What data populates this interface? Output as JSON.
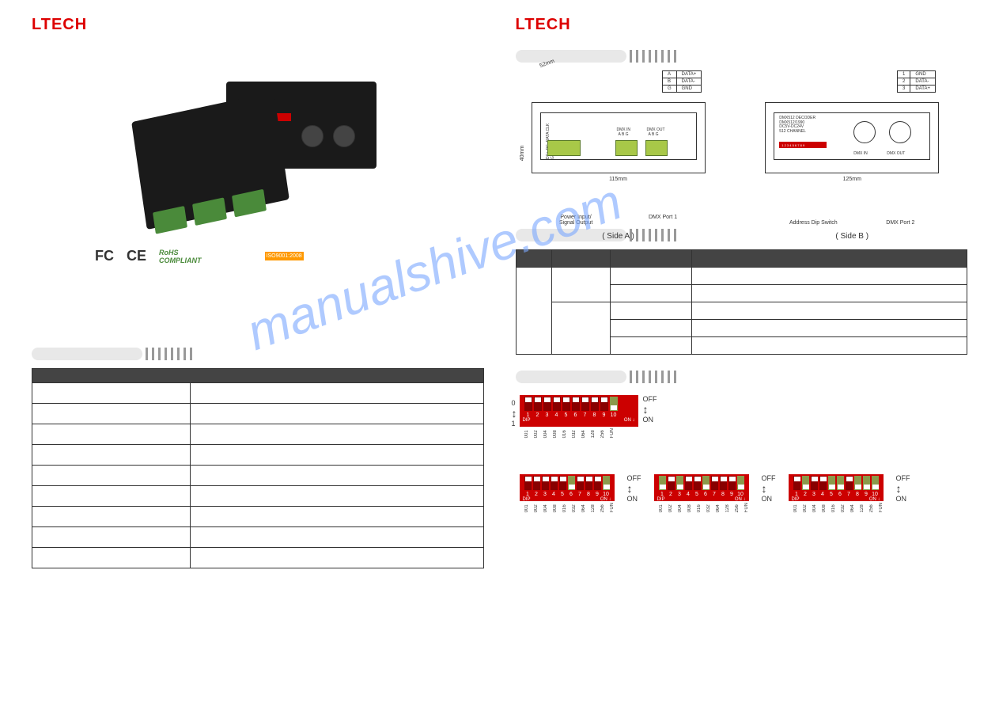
{
  "brand": "LTECH",
  "watermark": "manualshive.com",
  "certs": {
    "fc": "FC",
    "ce": "CE",
    "rohs_top": "RoHS",
    "rohs_bot": "COMPLIANT",
    "iso": "ISO9001:2008"
  },
  "left_spec": {
    "rows": [
      [
        "",
        ""
      ],
      [
        "",
        ""
      ],
      [
        "",
        ""
      ],
      [
        "",
        ""
      ],
      [
        "",
        ""
      ],
      [
        "",
        ""
      ],
      [
        "",
        ""
      ],
      [
        "",
        ""
      ],
      [
        "",
        ""
      ]
    ]
  },
  "diag_a": {
    "dim_v": "40mm",
    "dim_h": "115mm",
    "dim_top": "52mm",
    "label1": "Power Input/",
    "label1b": "Signal Output",
    "label2": "DMX Port 1",
    "side": "( Side A )",
    "pins": [
      [
        "A",
        "DATA+"
      ],
      [
        "B",
        "DATA-"
      ],
      [
        "G",
        "GND"
      ]
    ],
    "term_labels": [
      "DC+",
      "DC-",
      "DATA",
      "CLK",
      "GND"
    ],
    "port_in": "DMX IN",
    "port_out": "DMX OUT",
    "sub_labels": "A B G"
  },
  "diag_b": {
    "dim_h": "125mm",
    "label1": "Address Dip Switch",
    "label2": "DMX Port 2",
    "side": "( Side B )",
    "pins": [
      [
        "1",
        "GND"
      ],
      [
        "2",
        "DATA-"
      ],
      [
        "3",
        "DATA+"
      ]
    ],
    "dev_text1": "DMX512 DECODER",
    "dev_text2": "DMX512/1990",
    "dev_text3": "DC5V-DC24V",
    "dev_text4": "512 CHANNEL",
    "strip": "1 2 3 4 5 6 7 8 9",
    "port_in": "DMX IN",
    "port_out": "DMX OUT"
  },
  "port_table": {
    "rows": [
      [
        "",
        "",
        "",
        "",
        ""
      ],
      [
        "",
        "",
        "",
        "",
        ""
      ]
    ]
  },
  "dip_main": {
    "left_0": "0",
    "left_1": "1",
    "right_off": "OFF",
    "right_on": "ON",
    "nums": [
      "1",
      "2",
      "3",
      "4",
      "5",
      "6",
      "7",
      "8",
      "9",
      "10"
    ],
    "vals": [
      "001",
      "002",
      "004",
      "008",
      "016",
      "032",
      "064",
      "128",
      "256",
      "FUN"
    ],
    "label_dip": "DIP",
    "label_on": "ON ↓",
    "states": [
      false,
      false,
      false,
      false,
      false,
      false,
      false,
      false,
      false,
      true
    ]
  },
  "dip_ex1": {
    "nums": [
      "1",
      "2",
      "3",
      "4",
      "5",
      "6",
      "7",
      "8",
      "9",
      "10"
    ],
    "vals": [
      "001",
      "002",
      "004",
      "008",
      "016",
      "032",
      "064",
      "128",
      "256",
      "FUN"
    ],
    "states": [
      false,
      false,
      false,
      false,
      false,
      true,
      false,
      false,
      false,
      true
    ],
    "right_off": "OFF",
    "right_on": "ON",
    "label_dip": "DIP",
    "label_on": "ON ↓"
  },
  "dip_ex2": {
    "nums": [
      "1",
      "2",
      "3",
      "4",
      "5",
      "6",
      "7",
      "8",
      "9",
      "10"
    ],
    "vals": [
      "001",
      "002",
      "004",
      "008",
      "016",
      "032",
      "064",
      "128",
      "256",
      "FUN"
    ],
    "states": [
      true,
      false,
      true,
      false,
      false,
      true,
      false,
      false,
      false,
      true
    ],
    "right_off": "OFF",
    "right_on": "ON",
    "label_dip": "DIP",
    "label_on": "ON ↓"
  },
  "dip_ex3": {
    "nums": [
      "1",
      "2",
      "3",
      "4",
      "5",
      "6",
      "7",
      "8",
      "9",
      "10"
    ],
    "vals": [
      "001",
      "002",
      "004",
      "008",
      "016",
      "032",
      "064",
      "128",
      "256",
      "FUN"
    ],
    "states": [
      false,
      true,
      false,
      false,
      true,
      true,
      false,
      true,
      true,
      true
    ],
    "right_off": "OFF",
    "right_on": "ON",
    "label_dip": "DIP",
    "label_on": "ON ↓"
  },
  "colors": {
    "brand": "#d00",
    "dip_body": "#c00",
    "dip_on": "#8a9a4a",
    "terminal": "#a8c848"
  }
}
